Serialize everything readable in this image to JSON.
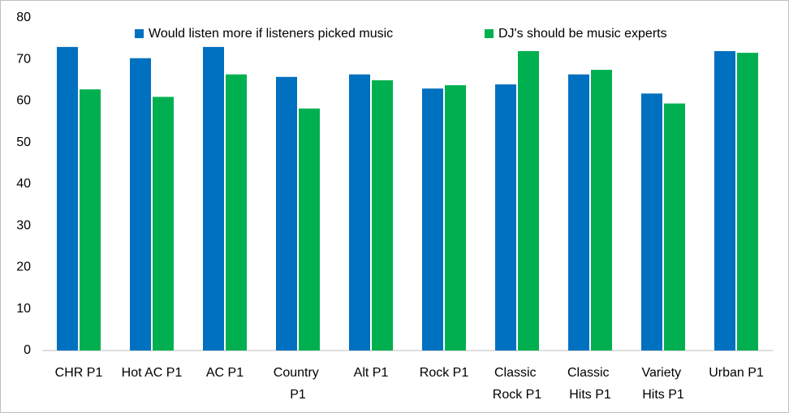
{
  "chart_data": {
    "type": "bar",
    "categories": [
      "CHR P1",
      "Hot AC P1",
      "AC P1",
      "Country P1",
      "Alt P1",
      "Rock P1",
      "Classic Rock P1",
      "Classic Hits P1",
      "Variety Hits P1",
      "Urban P1"
    ],
    "series": [
      {
        "name": "Would listen more if listeners picked music",
        "color": "#0070c0",
        "values": [
          73,
          70.3,
          73,
          65.8,
          66.4,
          63,
          64,
          66.4,
          61.8,
          72
        ]
      },
      {
        "name": "DJ's should be music experts",
        "color": "#00b050",
        "values": [
          62.8,
          61,
          66.4,
          58.2,
          65,
          63.8,
          72,
          67.5,
          59.4,
          71.6
        ]
      }
    ],
    "ylim": [
      0,
      80
    ],
    "yticks": [
      0,
      10,
      20,
      30,
      40,
      50,
      60,
      70,
      80
    ],
    "grid": false,
    "legend": "top"
  }
}
